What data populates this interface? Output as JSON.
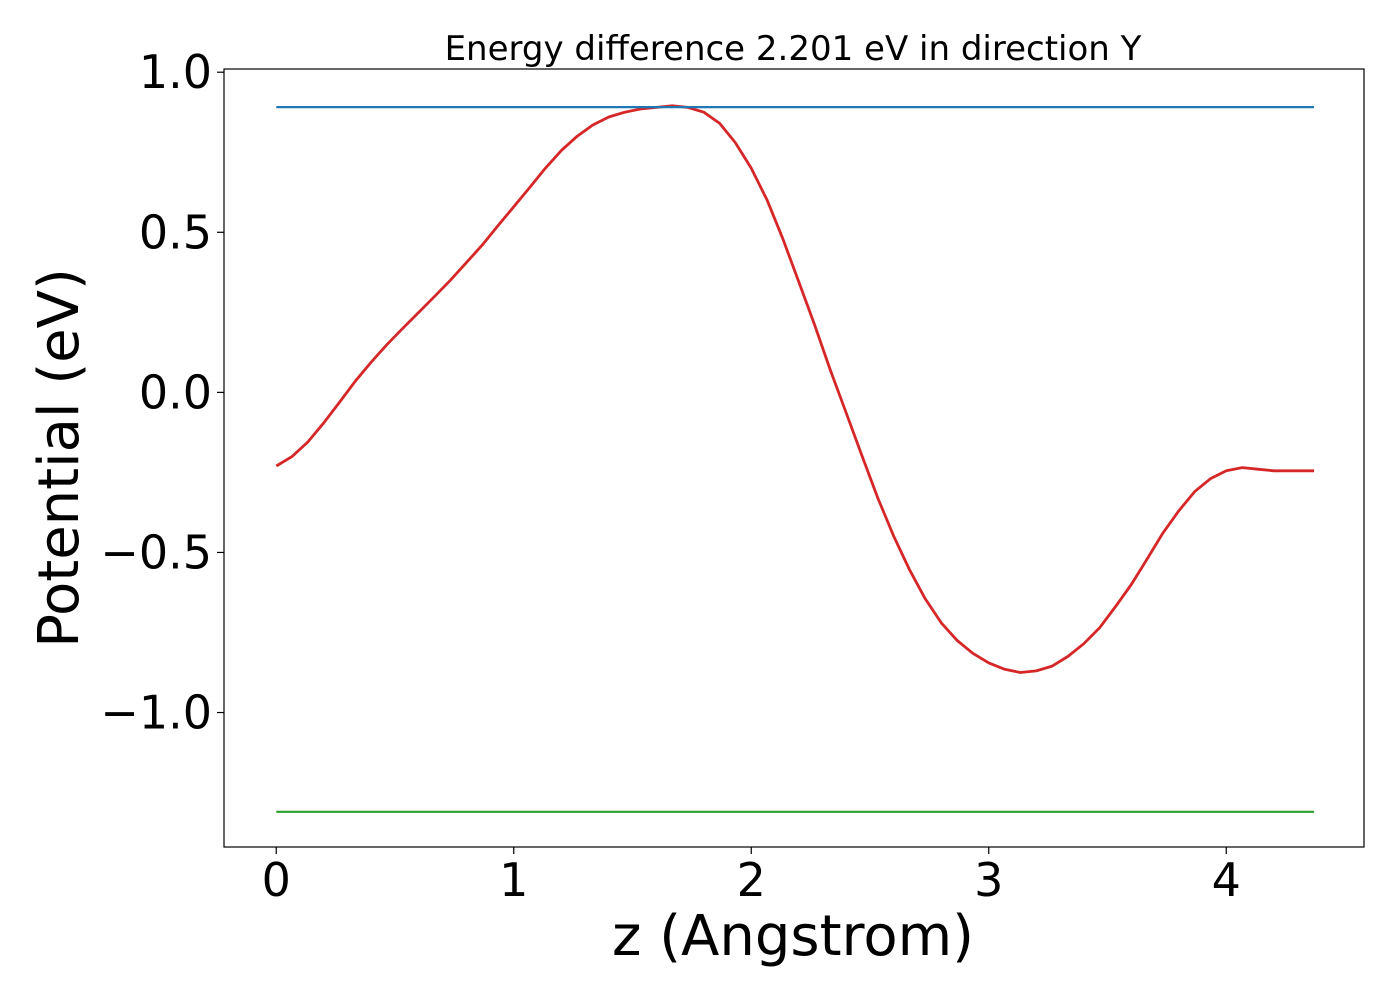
{
  "chart_data": {
    "type": "line",
    "title": "Energy difference 2.201 eV in direction Y",
    "xlabel": "z (Angstrom)",
    "ylabel": "Potential (eV)",
    "xlim": [
      -0.22,
      4.58
    ],
    "ylim": [
      -1.42,
      1.01
    ],
    "xticks": [
      0,
      1,
      2,
      3,
      4
    ],
    "xtick_labels": [
      "0",
      "1",
      "2",
      "3",
      "4"
    ],
    "yticks": [
      -1.0,
      -0.5,
      0.0,
      0.5,
      1.0
    ],
    "ytick_labels": [
      "−1.0",
      "−0.5",
      "0.0",
      "0.5",
      "1.0"
    ],
    "grid": false,
    "series": [
      {
        "color": "#d62728",
        "x": [
          0.0,
          0.067,
          0.133,
          0.2,
          0.267,
          0.333,
          0.4,
          0.467,
          0.533,
          0.6,
          0.667,
          0.733,
          0.8,
          0.867,
          0.933,
          1.0,
          1.067,
          1.133,
          1.2,
          1.267,
          1.333,
          1.4,
          1.467,
          1.533,
          1.6,
          1.667,
          1.733,
          1.8,
          1.867,
          1.933,
          2.0,
          2.067,
          2.133,
          2.2,
          2.267,
          2.333,
          2.4,
          2.467,
          2.533,
          2.6,
          2.667,
          2.733,
          2.8,
          2.867,
          2.933,
          3.0,
          3.067,
          3.133,
          3.2,
          3.267,
          3.333,
          3.4,
          3.467,
          3.533,
          3.6,
          3.667,
          3.733,
          3.8,
          3.867,
          3.933,
          4.0,
          4.067,
          4.133,
          4.2,
          4.267,
          4.333,
          4.37
        ],
        "y": [
          -0.23,
          -0.2,
          -0.155,
          -0.095,
          -0.03,
          0.035,
          0.095,
          0.15,
          0.2,
          0.25,
          0.3,
          0.35,
          0.405,
          0.46,
          0.52,
          0.58,
          0.64,
          0.7,
          0.755,
          0.8,
          0.835,
          0.86,
          0.875,
          0.885,
          0.89,
          0.895,
          0.89,
          0.875,
          0.84,
          0.78,
          0.7,
          0.6,
          0.48,
          0.345,
          0.21,
          0.07,
          -0.065,
          -0.2,
          -0.33,
          -0.45,
          -0.555,
          -0.645,
          -0.72,
          -0.775,
          -0.815,
          -0.845,
          -0.865,
          -0.875,
          -0.87,
          -0.855,
          -0.825,
          -0.785,
          -0.735,
          -0.67,
          -0.6,
          -0.52,
          -0.44,
          -0.37,
          -0.31,
          -0.27,
          -0.245,
          -0.235,
          -0.24,
          -0.245,
          -0.245,
          -0.245,
          -0.245
        ]
      },
      {
        "color": "#1f77b4",
        "x": [
          0.0,
          4.37
        ],
        "y": [
          0.891,
          0.891
        ]
      },
      {
        "color": "#2ca02c",
        "x": [
          0.0,
          4.37
        ],
        "y": [
          -1.31,
          -1.31
        ]
      }
    ]
  }
}
